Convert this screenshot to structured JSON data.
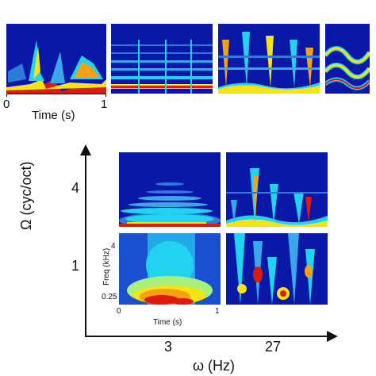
{
  "top_row": {
    "time_axis": {
      "label": "Time (s)",
      "tick_start": "0",
      "tick_end": "1"
    },
    "panels": [
      "spectrogram-speech",
      "spectrogram-music",
      "spectrogram-vocal",
      "spectrogram-harmonic-sweep"
    ]
  },
  "modulation_figure": {
    "y_axis": {
      "label": "Ω (cyc/oct)",
      "ticks": [
        "4",
        "1"
      ]
    },
    "x_axis": {
      "label": "ω (Hz)",
      "ticks": [
        "3",
        "27"
      ]
    },
    "inset": {
      "freq_label": "Freq (kHz)",
      "freq_ticks": [
        "4",
        "0.25"
      ],
      "time_label": "Time (s)",
      "time_ticks": [
        "0",
        "1"
      ]
    }
  },
  "colors": {
    "background_blue": "#0a14a8",
    "mid_cyan": "#22d3f0",
    "yellow": "#f7e312",
    "red": "#e01a0a",
    "axis": "#111111"
  }
}
